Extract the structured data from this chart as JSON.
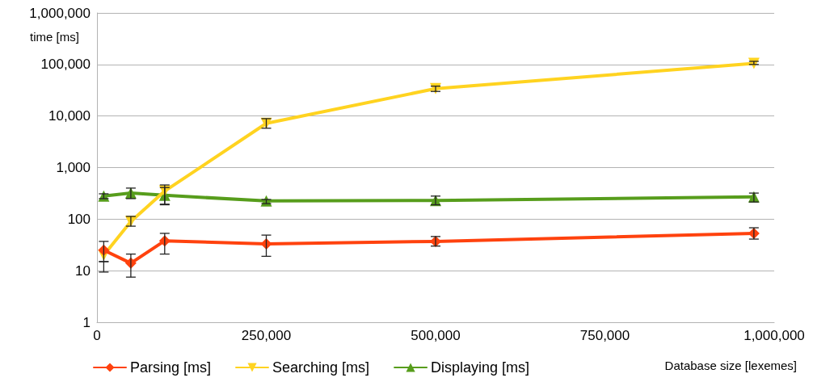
{
  "chart_data": {
    "type": "line",
    "xlabel": "Database size [lexemes]",
    "ylabel": "time [ms]",
    "log": "y",
    "grid": "y",
    "legend": "bottom",
    "x": [
      10000,
      50000,
      100000,
      250000,
      500000,
      970000
    ],
    "xlim": [
      0,
      1000000
    ],
    "xticks": [
      0,
      {
        "value": 250000,
        "label": "250,000"
      },
      {
        "value": 500000,
        "label": "500,000"
      },
      {
        "value": 750000,
        "label": "750,000"
      },
      {
        "value": 1000000,
        "label": "1,000,000"
      }
    ],
    "ylim": [
      1,
      1000000
    ],
    "yticks": [
      1,
      10,
      100,
      {
        "value": 1000,
        "label": "1,000"
      },
      {
        "value": 10000,
        "label": "10,000"
      },
      {
        "value": 100000,
        "label": "100,000"
      },
      {
        "value": 1000000,
        "label": "1,000,000"
      }
    ],
    "series": [
      {
        "name": "Parsing [ms]",
        "color": "#ff420e",
        "marker": "diamond",
        "values": [
          25,
          14,
          38,
          33,
          37,
          53
        ],
        "errors": [
          [
            15,
            37
          ],
          [
            7.5,
            21
          ],
          [
            21,
            53
          ],
          [
            19,
            49
          ],
          [
            30,
            46
          ],
          [
            41,
            68
          ]
        ]
      },
      {
        "name": "Searching [ms]",
        "color": "#ffd320",
        "marker": "triangle-down",
        "values": [
          20,
          90,
          350,
          7200,
          34000,
          105000
        ],
        "errors": [
          [
            9.4,
            15
          ],
          [
            73,
            113
          ],
          [
            190,
            460
          ],
          [
            5800,
            8900
          ],
          [
            30000,
            38000
          ],
          [
            100000,
            115000
          ]
        ]
      },
      {
        "name": "Displaying [ms]",
        "color": "#579d1c",
        "marker": "triangle",
        "values": [
          280,
          320,
          290,
          225,
          230,
          270
        ],
        "errors": [
          [
            250,
            310
          ],
          [
            250,
            400
          ],
          [
            195,
            410
          ],
          [
            200,
            240
          ],
          [
            190,
            280
          ],
          [
            215,
            320
          ]
        ]
      }
    ]
  }
}
